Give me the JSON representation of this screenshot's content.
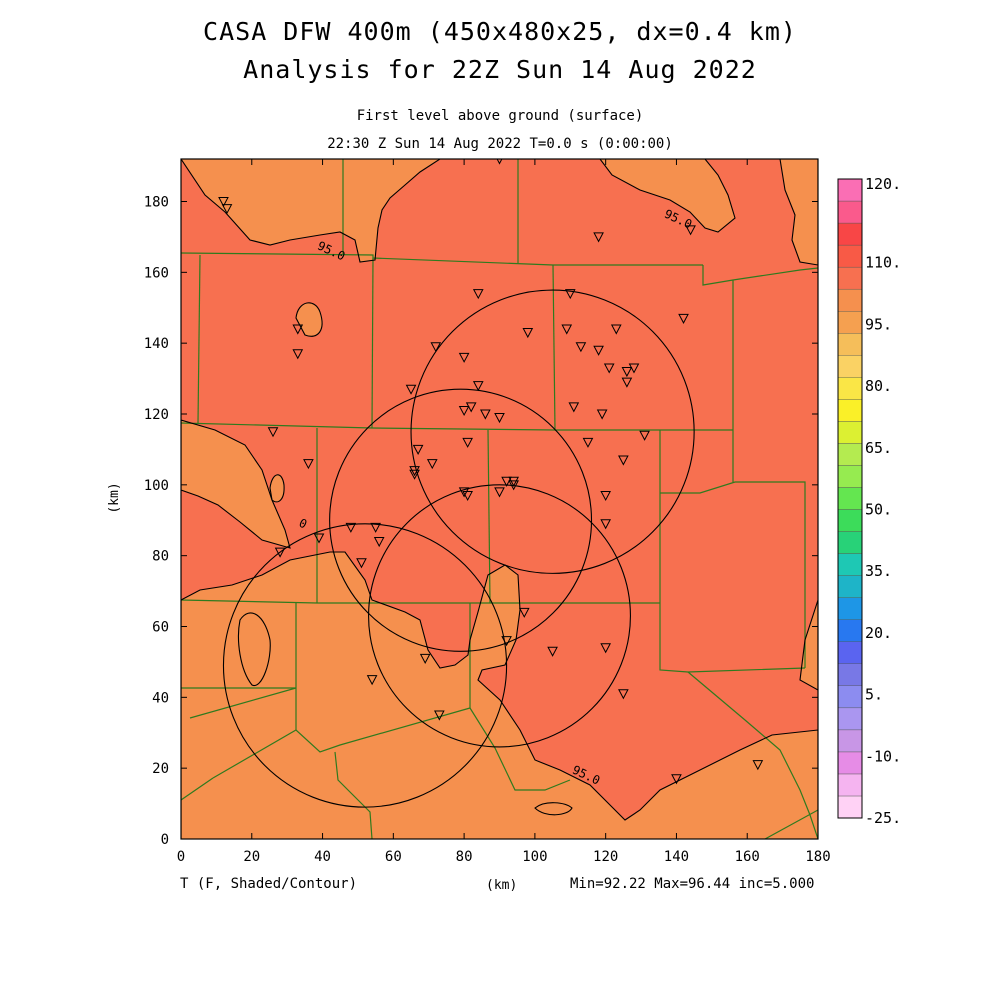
{
  "title_line1": "CASA DFW 400m (450x480x25, dx=0.4 km)",
  "title_line2": "Analysis for 22Z Sun 14 Aug 2022",
  "level_label": "First level above ground (surface)",
  "time_label": "22:30 Z Sun 14 Aug 2022    T=0.0 s (0:00:00)",
  "y_axis_label": "(km)",
  "x_axis_label": "(km)",
  "variable_label": "T (F, Shaded/Contour)",
  "stats_label": "Min=92.22 Max=96.44 inc=5.000",
  "x_ticks": [
    0,
    20,
    40,
    60,
    80,
    100,
    120,
    140,
    160,
    180
  ],
  "y_ticks": [
    0,
    20,
    40,
    60,
    80,
    100,
    120,
    140,
    160,
    180
  ],
  "x_range": [
    0,
    180
  ],
  "y_range": [
    0,
    192
  ],
  "contour_labels": [
    {
      "text": "95.0",
      "x": 42,
      "y": 165
    },
    {
      "text": "95.0",
      "x": 140,
      "y": 174
    },
    {
      "text": "95.0",
      "x": 114,
      "y": 17
    },
    {
      "text": "0",
      "x": 34,
      "y": 88
    }
  ],
  "colors": {
    "warm": "#f77050",
    "cooler": "#f5904e",
    "boundary": "#2f7a1e",
    "contour": "#000000"
  },
  "colorbar": {
    "colors": [
      "#ffd2f5",
      "#f5b4f0",
      "#e68ce6",
      "#c896e6",
      "#aa96f0",
      "#8c8cf0",
      "#7878e6",
      "#5a64f0",
      "#2878f0",
      "#1e96e6",
      "#1eb4c8",
      "#1ec8b4",
      "#28d278",
      "#3cdc5a",
      "#64e650",
      "#96eb50",
      "#b4eb50",
      "#dcf032",
      "#faf028",
      "#fae646",
      "#fad264",
      "#f5be5a",
      "#f5a050",
      "#f5904e",
      "#f77050",
      "#f85a46",
      "#f84646",
      "#fa5a8c",
      "#fa6eb4"
    ],
    "labels": [
      "-25.",
      "-10.",
      "5.",
      "20.",
      "35.",
      "50.",
      "65.",
      "80.",
      "95.",
      "110.",
      "120."
    ]
  },
  "radar_rings": [
    {
      "cx": 105,
      "cy": 115,
      "r": 40
    },
    {
      "cx": 79,
      "cy": 90,
      "r": 37
    },
    {
      "cx": 90,
      "cy": 63,
      "r": 37
    },
    {
      "cx": 52,
      "cy": 49,
      "r": 40
    }
  ],
  "stations": [
    [
      12,
      180
    ],
    [
      13,
      178
    ],
    [
      90,
      192
    ],
    [
      118,
      170
    ],
    [
      144,
      172
    ],
    [
      84,
      154
    ],
    [
      110,
      154
    ],
    [
      33,
      144
    ],
    [
      98,
      143
    ],
    [
      142,
      147
    ],
    [
      109,
      144
    ],
    [
      123,
      144
    ],
    [
      33,
      137
    ],
    [
      72,
      139
    ],
    [
      80,
      136
    ],
    [
      113,
      139
    ],
    [
      118,
      138
    ],
    [
      121,
      133
    ],
    [
      126,
      132
    ],
    [
      128,
      133
    ],
    [
      65,
      127
    ],
    [
      84,
      128
    ],
    [
      126,
      129
    ],
    [
      82,
      122
    ],
    [
      80,
      121
    ],
    [
      86,
      120
    ],
    [
      90,
      119
    ],
    [
      111,
      122
    ],
    [
      119,
      120
    ],
    [
      26,
      115
    ],
    [
      36,
      106
    ],
    [
      67,
      110
    ],
    [
      81,
      112
    ],
    [
      115,
      112
    ],
    [
      131,
      114
    ],
    [
      66,
      104
    ],
    [
      71,
      106
    ],
    [
      66,
      103
    ],
    [
      125,
      107
    ],
    [
      92,
      101
    ],
    [
      94,
      101
    ],
    [
      94,
      100
    ],
    [
      80,
      98
    ],
    [
      81,
      97
    ],
    [
      90,
      98
    ],
    [
      120,
      97
    ],
    [
      48,
      88
    ],
    [
      55,
      88
    ],
    [
      39,
      85
    ],
    [
      56,
      84
    ],
    [
      28,
      81
    ],
    [
      51,
      78
    ],
    [
      120,
      89
    ],
    [
      97,
      64
    ],
    [
      69,
      51
    ],
    [
      92,
      56
    ],
    [
      105,
      53
    ],
    [
      120,
      54
    ],
    [
      54,
      45
    ],
    [
      125,
      41
    ],
    [
      73,
      35
    ],
    [
      140,
      17
    ],
    [
      163,
      21
    ]
  ]
}
